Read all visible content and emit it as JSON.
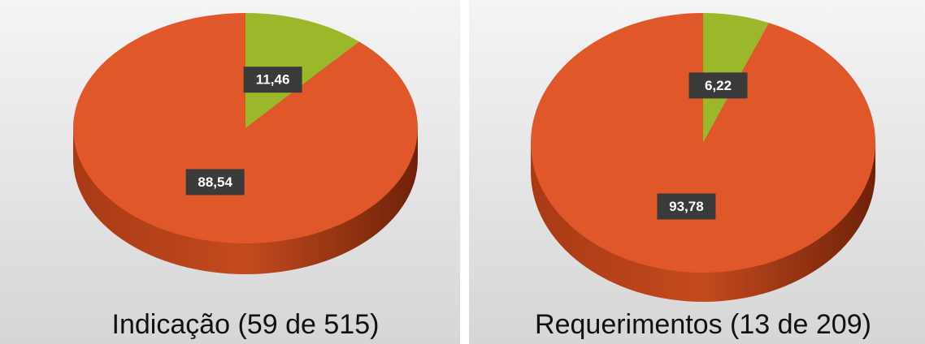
{
  "chart_data": [
    {
      "type": "pie",
      "title": "Indicação (59 de 515)",
      "values": [
        11.46,
        88.54
      ],
      "value_labels": [
        "11,46",
        "88,54"
      ],
      "colors": [
        "#9bb82b",
        "#e0582a"
      ]
    },
    {
      "type": "pie",
      "title": "Requerimentos (13 de 209)",
      "values": [
        6.22,
        93.78
      ],
      "value_labels": [
        "6,22",
        "93,78"
      ],
      "colors": [
        "#9bb82b",
        "#e0582a"
      ]
    }
  ]
}
